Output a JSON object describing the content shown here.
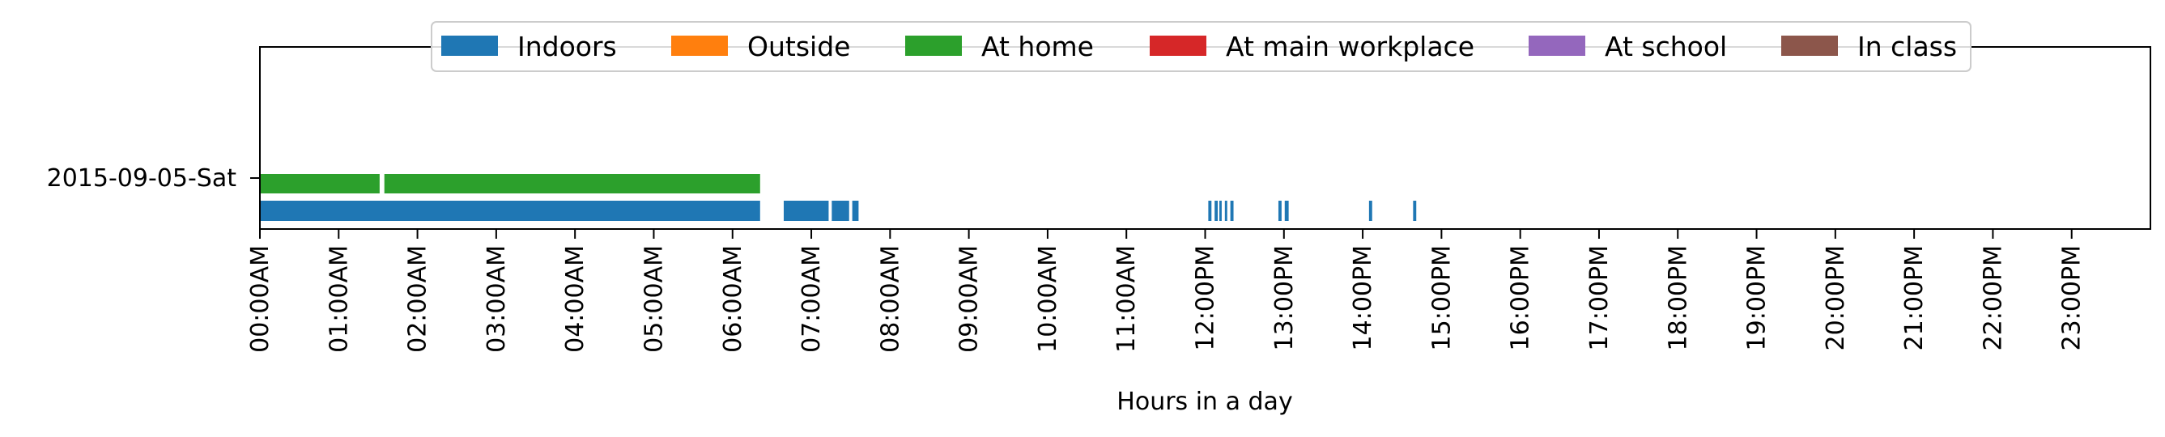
{
  "chart_data": {
    "type": "timeline",
    "xlabel": "Hours in a day",
    "xlim": [
      0,
      24
    ],
    "x_tick_labels": [
      "00:00AM",
      "01:00AM",
      "02:00AM",
      "03:00AM",
      "04:00AM",
      "05:00AM",
      "06:00AM",
      "07:00AM",
      "08:00AM",
      "09:00AM",
      "10:00AM",
      "11:00AM",
      "12:00PM",
      "13:00PM",
      "14:00PM",
      "15:00PM",
      "16:00PM",
      "17:00PM",
      "18:00PM",
      "19:00PM",
      "20:00PM",
      "21:00PM",
      "22:00PM",
      "23:00PM"
    ],
    "y_tick_labels": [
      "2015-09-05-Sat"
    ],
    "legend_placement": "top-center",
    "legend": [
      {
        "name": "Indoors",
        "color": "#1f77b4"
      },
      {
        "name": "Outside",
        "color": "#ff7f0e"
      },
      {
        "name": "At home",
        "color": "#2ca02c"
      },
      {
        "name": "At main workplace",
        "color": "#d62728"
      },
      {
        "name": "At school",
        "color": "#9467bd"
      },
      {
        "name": "In class",
        "color": "#8c564b"
      }
    ],
    "series": [
      {
        "name": "At home",
        "color": "#2ca02c",
        "lane": 0,
        "intervals": [
          [
            0.0,
            1.52
          ],
          [
            1.58,
            6.35
          ]
        ]
      },
      {
        "name": "Indoors",
        "color": "#1f77b4",
        "lane": 1,
        "intervals": [
          [
            0.0,
            6.35
          ],
          [
            6.65,
            7.22
          ],
          [
            7.26,
            7.48
          ],
          [
            7.52,
            7.6
          ],
          [
            12.04,
            12.08
          ],
          [
            12.12,
            12.16
          ],
          [
            12.18,
            12.21
          ],
          [
            12.25,
            12.28
          ],
          [
            12.32,
            12.36
          ],
          [
            12.93,
            12.97
          ],
          [
            13.01,
            13.06
          ],
          [
            14.08,
            14.12
          ],
          [
            14.64,
            14.68
          ]
        ]
      }
    ]
  }
}
